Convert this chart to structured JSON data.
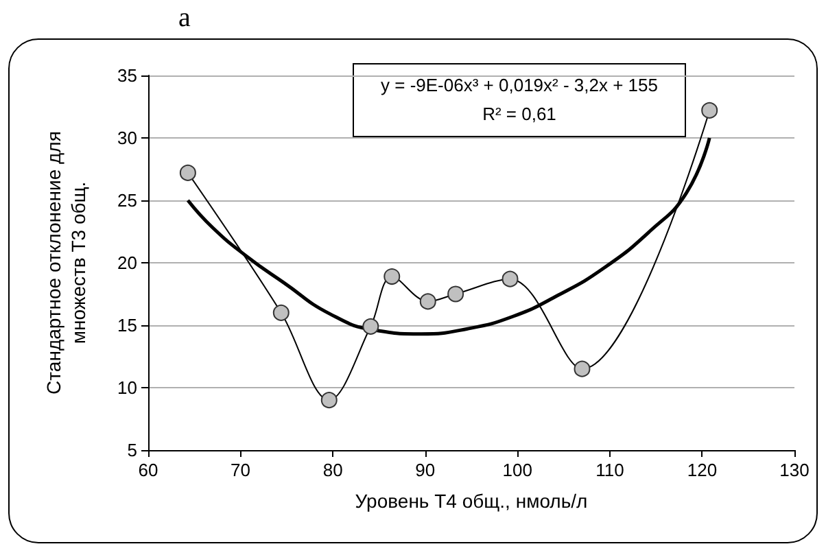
{
  "chart_data": {
    "type": "line",
    "title": "a",
    "xlabel": "Уровень Т4 общ., нмоль/л",
    "ylabel": "Стандартное отклонение для\nмножеств Т3 общ.",
    "annotations": [
      "y = -9E-06x³ + 0,019x² - 3,2x + 155",
      "R² = 0,61"
    ],
    "series": [
      {
        "color": "#000000",
        "marker": "circle",
        "x": [
          64.3,
          74.4,
          79.6,
          84.1,
          86.4,
          90.3,
          93.3,
          99.2,
          107.0,
          120.8
        ],
        "values": [
          27.2,
          16.0,
          9.0,
          14.9,
          18.9,
          16.9,
          17.5,
          18.7,
          11.5,
          32.2
        ]
      },
      {
        "color": "#000000",
        "marker": "none",
        "x": [
          64.3,
          67,
          70.7,
          74.7,
          79.7,
          84.6,
          89.6,
          94.5,
          99.5,
          104.4,
          109.4,
          114.3,
          118.3,
          120.8
        ],
        "values": [
          25.0,
          22.8,
          20.5,
          18.4,
          15.9,
          14.6,
          14.3,
          14.7,
          15.7,
          17.4,
          19.6,
          22.5,
          25.6,
          30.0
        ]
      }
    ],
    "xlim": [
      60,
      130
    ],
    "xticks": [
      60,
      70,
      80,
      90,
      100,
      110,
      120,
      130
    ],
    "ylim": [
      5,
      35
    ],
    "yticks": [
      5,
      10,
      15,
      20,
      25,
      30,
      35
    ],
    "grid": "y"
  }
}
